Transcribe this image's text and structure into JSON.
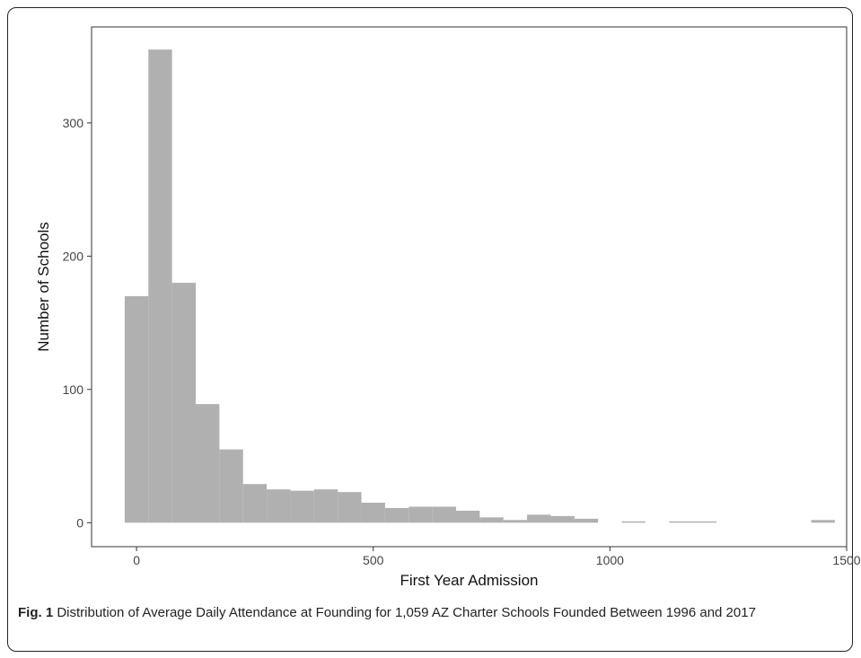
{
  "chart_data": {
    "type": "bar",
    "title": "",
    "xlabel": "First Year Admission",
    "ylabel": "Number of Schools",
    "xlim": [
      -95,
      1500
    ],
    "ylim": [
      -18,
      372
    ],
    "xticks": [
      0,
      500,
      1000,
      1500
    ],
    "yticks": [
      0,
      100,
      200,
      300
    ],
    "grid": false,
    "bar_color": "#b0b0b0",
    "bin_width": 50,
    "bins": [
      {
        "x0": -25,
        "x1": 25,
        "count": 170
      },
      {
        "x0": 25,
        "x1": 75,
        "count": 355
      },
      {
        "x0": 75,
        "x1": 125,
        "count": 180
      },
      {
        "x0": 125,
        "x1": 175,
        "count": 89
      },
      {
        "x0": 175,
        "x1": 225,
        "count": 55
      },
      {
        "x0": 225,
        "x1": 275,
        "count": 29
      },
      {
        "x0": 275,
        "x1": 325,
        "count": 25
      },
      {
        "x0": 325,
        "x1": 375,
        "count": 24
      },
      {
        "x0": 375,
        "x1": 425,
        "count": 25
      },
      {
        "x0": 425,
        "x1": 475,
        "count": 23
      },
      {
        "x0": 475,
        "x1": 525,
        "count": 15
      },
      {
        "x0": 525,
        "x1": 575,
        "count": 11
      },
      {
        "x0": 575,
        "x1": 625,
        "count": 12
      },
      {
        "x0": 625,
        "x1": 675,
        "count": 12
      },
      {
        "x0": 675,
        "x1": 725,
        "count": 9
      },
      {
        "x0": 725,
        "x1": 775,
        "count": 4
      },
      {
        "x0": 775,
        "x1": 825,
        "count": 2
      },
      {
        "x0": 825,
        "x1": 875,
        "count": 6
      },
      {
        "x0": 875,
        "x1": 925,
        "count": 5
      },
      {
        "x0": 925,
        "x1": 975,
        "count": 3
      },
      {
        "x0": 975,
        "x1": 1025,
        "count": 0
      },
      {
        "x0": 1025,
        "x1": 1075,
        "count": 1
      },
      {
        "x0": 1075,
        "x1": 1125,
        "count": 0
      },
      {
        "x0": 1125,
        "x1": 1175,
        "count": 1
      },
      {
        "x0": 1175,
        "x1": 1225,
        "count": 1
      },
      {
        "x0": 1225,
        "x1": 1275,
        "count": 0
      },
      {
        "x0": 1275,
        "x1": 1325,
        "count": 0
      },
      {
        "x0": 1325,
        "x1": 1375,
        "count": 0
      },
      {
        "x0": 1375,
        "x1": 1425,
        "count": 0
      },
      {
        "x0": 1425,
        "x1": 1475,
        "count": 2
      }
    ]
  },
  "caption": {
    "label": "Fig. 1",
    "text": " Distribution of Average Daily Attendance at Founding for 1,059 AZ Charter Schools Founded Between 1996 and 2017"
  }
}
